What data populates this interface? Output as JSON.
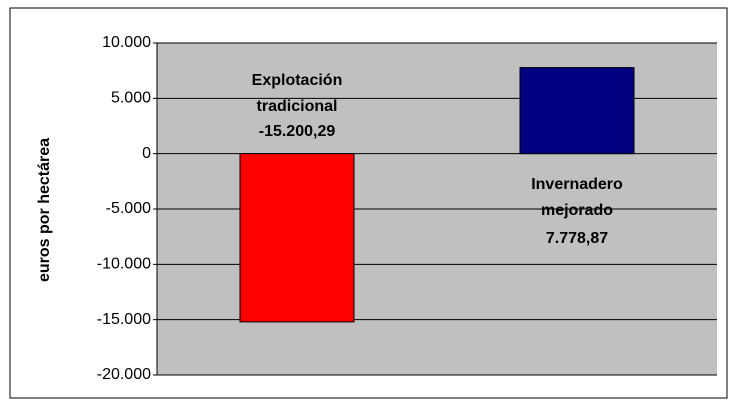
{
  "chart_data": {
    "type": "bar",
    "y_label": "euros por hectárea",
    "categories": [
      "Explotación tradicional",
      "Invernadero mejorado"
    ],
    "values": [
      -15200.29,
      7778.87
    ],
    "value_labels": [
      "-15.200,29",
      "7.778,87"
    ],
    "colors": [
      "#ff0000",
      "#000080"
    ],
    "ylim": [
      -20000,
      10000
    ],
    "yticks": [
      {
        "value": -20000,
        "label": "-20.000"
      },
      {
        "value": -15000,
        "label": "-15.000"
      },
      {
        "value": -10000,
        "label": "-10.000"
      },
      {
        "value": -5000,
        "label": "-5.000"
      },
      0,
      {
        "value": 5000,
        "label": "5.000"
      },
      {
        "value": 10000,
        "label": "10.000"
      }
    ],
    "grid": true
  }
}
